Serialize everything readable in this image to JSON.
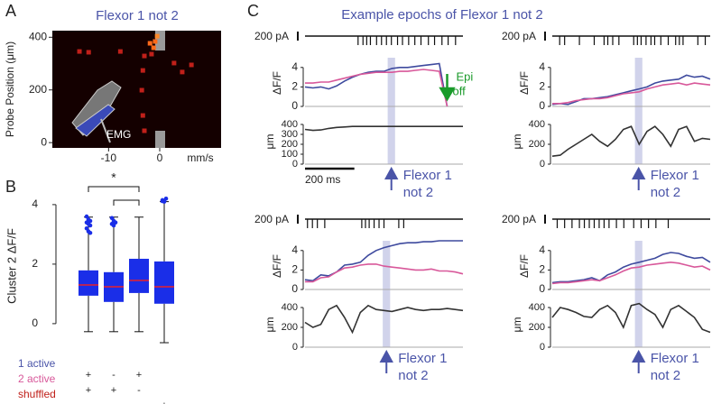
{
  "figure": {
    "panel_labels": [
      "A",
      "B",
      "C"
    ],
    "title_c": "Example epochs of Flexor 1 not 2"
  },
  "chart_data": [
    {
      "type": "scatter",
      "title": "Flexor 1 not 2",
      "x_label": "mm/s",
      "y_label": "Probe Position (μm)",
      "annotation": "EMG",
      "x": [
        -15.7,
        -13.9,
        -7.7,
        -3.3,
        -3.0,
        -1.9,
        -1.2,
        -0.9,
        -1.6,
        -3.5,
        -3.3,
        -3.0,
        2.8,
        4.4,
        6.2,
        -0.5
      ],
      "y": [
        346,
        343,
        346,
        274,
        329,
        377,
        360,
        384,
        336,
        199,
        103,
        45,
        302,
        268,
        295,
        404
      ],
      "point_colors": [
        "#c0201a",
        "#c0201a",
        "#c0201a",
        "#c0201a",
        "#c0201a",
        "#ff6a1a",
        "#ff6a1a",
        "#ff6a1a",
        "#c0201a",
        "#c0201a",
        "#c0201a",
        "#c0201a",
        "#c0201a",
        "#c0201a",
        "#c0201a",
        "#ff8a2a"
      ],
      "xlim": [
        -21,
        12
      ],
      "ylim": [
        -20,
        425
      ],
      "xticks": [
        -10,
        0
      ],
      "yticks": [
        0,
        200,
        400
      ],
      "background": "#140000"
    },
    {
      "type": "box",
      "y_label": "Cluster 2 ΔF/F",
      "ylim": [
        -0.7,
        4.3
      ],
      "yticks": [
        0,
        2,
        4
      ],
      "color": "#1a2ee8",
      "median_color": "#e8202a",
      "boxes": [
        {
          "whislo": -0.27,
          "q1": 0.94,
          "med": 1.3,
          "q3": 1.79,
          "whishi": 3.58,
          "fliers": [
            3.6,
            3.5,
            3.45,
            3.4,
            3.35,
            3.3,
            3.2,
            3.1,
            3.05
          ]
        },
        {
          "whislo": -0.27,
          "q1": 0.73,
          "med": 1.24,
          "q3": 1.73,
          "whishi": 3.58,
          "fliers": [
            3.55,
            3.45,
            3.4,
            3.35,
            3.3
          ]
        },
        {
          "whislo": -0.27,
          "q1": 1.03,
          "med": 1.45,
          "q3": 2.18,
          "whishi": 3.58,
          "fliers": []
        },
        {
          "whislo": -0.64,
          "q1": 0.67,
          "med": 1.24,
          "q3": 2.09,
          "whishi": 4.1,
          "fliers": [
            4.15,
            4.1,
            4.2,
            4.12
          ]
        }
      ],
      "rows": [
        {
          "name": "1 active",
          "color": "#4a54a8",
          "marks": [
            "+",
            "-",
            "+",
            null
          ]
        },
        {
          "name": "2 active",
          "color": "#d8589a",
          "marks": [
            "+",
            "+",
            "-",
            null
          ]
        },
        {
          "name": "shuffled",
          "color": "#c0201a",
          "marks": [
            null,
            null,
            null,
            "+"
          ]
        }
      ],
      "significance": "*",
      "brackets": [
        [
          0,
          2
        ],
        [
          1,
          2
        ]
      ]
    },
    {
      "type": "epoch",
      "current_label": "200 pA",
      "spikes": [
        215,
        235,
        250,
        265,
        290,
        310,
        330,
        350,
        375,
        395,
        420,
        445,
        470,
        500,
        525,
        555,
        580,
        610
      ],
      "x": [
        0,
        32,
        64,
        96,
        128,
        160,
        192,
        224,
        256,
        288,
        320,
        352,
        384,
        416,
        448,
        480,
        512,
        544,
        576,
        608,
        640
      ],
      "xlim": [
        0,
        640
      ],
      "dff_label": "ΔF/F",
      "dff_ylim": [
        0,
        5
      ],
      "dff_yticks": [
        0,
        2,
        4
      ],
      "dff_series": [
        {
          "color": "#3e4a9e",
          "values": [
            2.0,
            1.9,
            2.0,
            1.8,
            2.1,
            2.6,
            3.0,
            3.3,
            3.5,
            3.6,
            3.6,
            3.9,
            4.0,
            4.0,
            4.1,
            4.2,
            4.3,
            4.4,
            0.0,
            null,
            null
          ]
        },
        {
          "color": "#d8589a",
          "values": [
            2.4,
            2.4,
            2.5,
            2.5,
            2.7,
            2.9,
            3.1,
            3.3,
            3.4,
            3.5,
            3.5,
            3.5,
            3.6,
            3.6,
            3.7,
            3.8,
            3.7,
            3.6,
            0.0,
            null,
            null
          ]
        }
      ],
      "pos_label": "μm",
      "pos_ylim": [
        0,
        450
      ],
      "pos_yticks": [
        0,
        100,
        200,
        300,
        400
      ],
      "position": {
        "color": "#333333",
        "values": [
          350,
          340,
          345,
          360,
          370,
          375,
          380,
          380,
          380,
          380,
          380,
          380,
          380,
          380,
          380,
          380,
          380,
          380,
          380,
          380,
          380
        ]
      },
      "highlight": [
        335,
        365
      ],
      "highlight_color": "#c5c8e6",
      "annotation": [
        "Flexor 1",
        "not 2"
      ],
      "annotation_color": "#4a54a8",
      "stim_label": [
        "Epi",
        "off"
      ],
      "stim_time": 576,
      "stim_color": "#1a9a2a",
      "time_scale": {
        "label": "200 ms",
        "value": 200
      }
    },
    {
      "type": "epoch",
      "current_label": "200 pA",
      "spikes": [
        30,
        50,
        110,
        170,
        210,
        225,
        245,
        270,
        330,
        345,
        360,
        380,
        400,
        415,
        440,
        470,
        500,
        515,
        530,
        590,
        620
      ],
      "x": [
        0,
        32,
        64,
        96,
        128,
        160,
        192,
        224,
        256,
        288,
        320,
        352,
        384,
        416,
        448,
        480,
        512,
        544,
        576,
        608,
        640
      ],
      "xlim": [
        0,
        640
      ],
      "dff_label": "ΔF/F",
      "dff_ylim": [
        0,
        5
      ],
      "dff_yticks": [
        0,
        2,
        4
      ],
      "dff_series": [
        {
          "color": "#3e4a9e",
          "values": [
            0.2,
            0.3,
            0.2,
            0.5,
            0.8,
            0.8,
            0.9,
            1.0,
            1.2,
            1.4,
            1.6,
            1.8,
            2.0,
            2.4,
            2.6,
            2.7,
            2.8,
            3.2,
            3.0,
            3.1,
            2.8
          ]
        },
        {
          "color": "#d8589a",
          "values": [
            0.3,
            0.3,
            0.4,
            0.6,
            0.7,
            0.8,
            0.8,
            0.9,
            1.1,
            1.3,
            1.4,
            1.5,
            1.8,
            2.0,
            2.2,
            2.3,
            2.4,
            2.2,
            2.4,
            2.3,
            2.2
          ]
        }
      ],
      "pos_label": "μm",
      "pos_ylim": [
        0,
        450
      ],
      "pos_yticks": [
        0,
        200,
        400
      ],
      "position": {
        "color": "#333333",
        "values": [
          80,
          90,
          150,
          200,
          250,
          300,
          230,
          180,
          250,
          350,
          380,
          200,
          330,
          380,
          300,
          180,
          350,
          380,
          230,
          260,
          250
        ]
      },
      "highlight": [
        335,
        365
      ],
      "highlight_color": "#c5c8e6",
      "annotation": [
        "Flexor 1",
        "not 2"
      ],
      "annotation_color": "#4a54a8"
    },
    {
      "type": "epoch",
      "current_label": "200 pA",
      "spikes": [
        10,
        30,
        50,
        80,
        230,
        245,
        260,
        280,
        300,
        320,
        380,
        400
      ],
      "x": [
        0,
        32,
        64,
        96,
        128,
        160,
        192,
        224,
        256,
        288,
        320,
        352,
        384,
        416,
        448,
        480,
        512,
        544,
        576,
        608,
        640
      ],
      "xlim": [
        0,
        640
      ],
      "dff_label": "ΔF/F",
      "dff_ylim": [
        0,
        5
      ],
      "dff_yticks": [
        0,
        2,
        4
      ],
      "dff_series": [
        {
          "color": "#3e4a9e",
          "values": [
            1.0,
            0.9,
            1.5,
            1.4,
            1.8,
            2.5,
            2.6,
            2.8,
            3.5,
            4.0,
            4.3,
            4.5,
            4.7,
            4.8,
            4.8,
            4.9,
            4.9,
            5.0,
            5.0,
            5.0,
            5.0
          ]
        },
        {
          "color": "#d8589a",
          "values": [
            0.8,
            0.8,
            1.2,
            1.3,
            1.8,
            2.2,
            2.3,
            2.5,
            2.6,
            2.6,
            2.4,
            2.3,
            2.2,
            2.1,
            2.0,
            2.0,
            2.1,
            1.9,
            1.9,
            1.8,
            1.6
          ]
        }
      ],
      "pos_label": "μm",
      "pos_ylim": [
        0,
        450
      ],
      "pos_yticks": [
        0,
        200,
        400
      ],
      "position": {
        "color": "#333333",
        "values": [
          250,
          200,
          230,
          380,
          420,
          300,
          150,
          350,
          420,
          380,
          370,
          360,
          380,
          400,
          380,
          370,
          380,
          380,
          390,
          380,
          370
        ]
      },
      "highlight": [
        315,
        345
      ],
      "highlight_color": "#c5c8e6",
      "annotation": [
        "Flexor 1",
        "not 2"
      ],
      "annotation_color": "#4a54a8"
    },
    {
      "type": "epoch",
      "current_label": "200 pA",
      "spikes": [
        20,
        50,
        80,
        110,
        130,
        150,
        170,
        190,
        210,
        230,
        260,
        290,
        330,
        360,
        390,
        420,
        470
      ],
      "x": [
        0,
        32,
        64,
        96,
        128,
        160,
        192,
        224,
        256,
        288,
        320,
        352,
        384,
        416,
        448,
        480,
        512,
        544,
        576,
        608,
        640
      ],
      "xlim": [
        0,
        640
      ],
      "dff_label": "ΔF/F",
      "dff_ylim": [
        0,
        5
      ],
      "dff_yticks": [
        0,
        2,
        4
      ],
      "dff_series": [
        {
          "color": "#3e4a9e",
          "values": [
            0.7,
            0.8,
            0.8,
            0.9,
            1.0,
            1.2,
            0.9,
            1.5,
            1.8,
            2.3,
            2.6,
            2.8,
            3.0,
            3.2,
            3.6,
            3.8,
            3.7,
            3.4,
            3.2,
            3.3,
            2.8
          ]
        },
        {
          "color": "#d8589a",
          "values": [
            0.6,
            0.7,
            0.7,
            0.8,
            0.9,
            1.0,
            0.9,
            1.2,
            1.5,
            1.9,
            2.2,
            2.3,
            2.5,
            2.6,
            2.7,
            2.8,
            2.7,
            2.5,
            2.3,
            2.4,
            2.0
          ]
        }
      ],
      "pos_label": "μm",
      "pos_ylim": [
        0,
        450
      ],
      "pos_yticks": [
        0,
        200,
        400
      ],
      "position": {
        "color": "#333333",
        "values": [
          300,
          400,
          380,
          350,
          310,
          300,
          380,
          420,
          350,
          200,
          420,
          440,
          380,
          330,
          200,
          380,
          420,
          360,
          300,
          180,
          150
        ]
      },
      "highlight": [
        335,
        365
      ],
      "highlight_color": "#c5c8e6",
      "annotation": [
        "Flexor 1",
        "not 2"
      ],
      "annotation_color": "#4a54a8"
    }
  ]
}
